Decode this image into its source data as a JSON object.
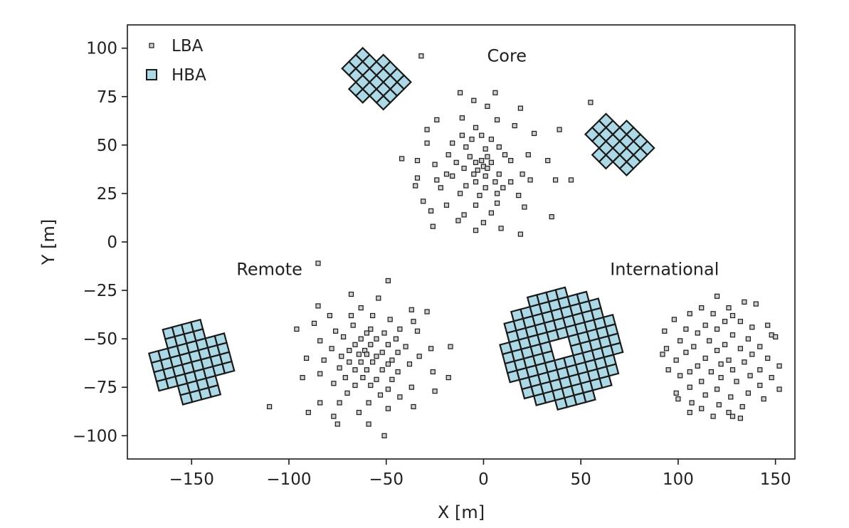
{
  "chart_data": {
    "type": "scatter",
    "xlabel": "X [m]",
    "ylabel": "Y [m]",
    "xlim": [
      -183,
      160
    ],
    "ylim": [
      -112,
      112
    ],
    "xticks": [
      -150,
      -100,
      -50,
      0,
      50,
      100,
      150
    ],
    "yticks": [
      -100,
      -75,
      -50,
      -25,
      0,
      25,
      50,
      75,
      100
    ],
    "xtick_labels": [
      "−150",
      "−100",
      "−50",
      "0",
      "50",
      "100",
      "150"
    ],
    "ytick_labels": [
      "−100",
      "−75",
      "−50",
      "−25",
      "0",
      "25",
      "50",
      "75",
      "100"
    ],
    "grid": false,
    "legend_position": "top-left",
    "legend": [
      {
        "name": "LBA",
        "marker": "small-square"
      },
      {
        "name": "HBA",
        "marker": "large-square"
      }
    ],
    "annotations": [
      {
        "text": "Core",
        "x": 12,
        "y": 93
      },
      {
        "text": "Remote",
        "x": -110,
        "y": -17
      },
      {
        "text": "International",
        "x": 93,
        "y": -17
      }
    ],
    "colors": {
      "hba_fill": "#add8e6",
      "edge": "#1a1a1a",
      "lba_fill": "#cfcfcf"
    },
    "hba_tile_size": 5,
    "hba_stations": [
      {
        "group": "Core",
        "tiles": 24,
        "center": [
          -55,
          86
        ],
        "layout": "diamond-cross",
        "rotation_deg": 45
      },
      {
        "group": "Core",
        "tiles": 24,
        "center": [
          70,
          52
        ],
        "layout": "diamond-cross",
        "rotation_deg": 45
      },
      {
        "group": "Remote",
        "tiles": 48,
        "center": [
          -150,
          -62
        ],
        "layout": "cross",
        "rotation_deg": 15
      },
      {
        "group": "International",
        "tiles": 96,
        "center": [
          40,
          -55
        ],
        "layout": "disc",
        "rotation_deg": 15
      }
    ],
    "lba_series": [
      {
        "group": "Core",
        "points": [
          [
            -32,
            96
          ],
          [
            -12,
            77
          ],
          [
            6,
            77
          ],
          [
            -5,
            73
          ],
          [
            2,
            70
          ],
          [
            19,
            69
          ],
          [
            -11,
            64
          ],
          [
            7,
            63
          ],
          [
            -24,
            63
          ],
          [
            -4,
            59
          ],
          [
            16,
            60
          ],
          [
            -29,
            58
          ],
          [
            39,
            58
          ],
          [
            -11,
            55
          ],
          [
            -1,
            55
          ],
          [
            26,
            56
          ],
          [
            -6,
            53
          ],
          [
            4,
            53
          ],
          [
            -16,
            51
          ],
          [
            -9,
            49
          ],
          [
            1,
            48
          ],
          [
            8,
            49
          ],
          [
            -29,
            51
          ],
          [
            -42,
            43
          ],
          [
            -18,
            45
          ],
          [
            -7,
            44
          ],
          [
            2,
            44
          ],
          [
            11,
            45
          ],
          [
            23,
            45
          ],
          [
            -34,
            42
          ],
          [
            -14,
            41
          ],
          [
            -4,
            41
          ],
          [
            -1,
            42
          ],
          [
            4,
            41
          ],
          [
            14,
            42
          ],
          [
            33,
            42
          ],
          [
            -25,
            40
          ],
          [
            -10,
            38
          ],
          [
            0,
            39
          ],
          [
            2,
            38
          ],
          [
            -3,
            37
          ],
          [
            -19,
            35
          ],
          [
            -5,
            35
          ],
          [
            1,
            34
          ],
          [
            8,
            35
          ],
          [
            20,
            35
          ],
          [
            -16,
            34
          ],
          [
            -34,
            33
          ],
          [
            -24,
            32
          ],
          [
            -4,
            31
          ],
          [
            6,
            31
          ],
          [
            14,
            31
          ],
          [
            24,
            32
          ],
          [
            37,
            32
          ],
          [
            45,
            32
          ],
          [
            -9,
            29
          ],
          [
            1,
            28
          ],
          [
            10,
            28
          ],
          [
            -35,
            29
          ],
          [
            -22,
            28
          ],
          [
            -12,
            25
          ],
          [
            -2,
            24
          ],
          [
            7,
            25
          ],
          [
            18,
            24
          ],
          [
            -31,
            21
          ],
          [
            -19,
            19
          ],
          [
            -4,
            19
          ],
          [
            7,
            20
          ],
          [
            21,
            18
          ],
          [
            -27,
            16
          ],
          [
            -10,
            14
          ],
          [
            4,
            15
          ],
          [
            35,
            13
          ],
          [
            -13,
            11
          ],
          [
            0,
            10
          ],
          [
            -26,
            8
          ],
          [
            -4,
            6
          ],
          [
            9,
            7
          ],
          [
            19,
            4
          ],
          [
            55,
            72
          ]
        ]
      },
      {
        "group": "Remote",
        "points": [
          [
            -85,
            -11
          ],
          [
            -49,
            -20
          ],
          [
            -68,
            -27
          ],
          [
            -54,
            -29
          ],
          [
            -85,
            -33
          ],
          [
            -63,
            -34
          ],
          [
            -37,
            -35
          ],
          [
            -29,
            -36
          ],
          [
            -79,
            -38
          ],
          [
            -68,
            -38
          ],
          [
            -57,
            -38
          ],
          [
            -48,
            -40
          ],
          [
            -87,
            -42
          ],
          [
            -36,
            -41
          ],
          [
            -67,
            -43
          ],
          [
            -58,
            -45
          ],
          [
            -43,
            -45
          ],
          [
            -96,
            -45
          ],
          [
            -76,
            -46
          ],
          [
            -60,
            -47
          ],
          [
            -51,
            -47
          ],
          [
            -34,
            -46
          ],
          [
            -72,
            -49
          ],
          [
            -63,
            -50
          ],
          [
            -55,
            -50
          ],
          [
            -45,
            -50
          ],
          [
            -84,
            -51
          ],
          [
            -66,
            -53
          ],
          [
            -58,
            -53
          ],
          [
            -49,
            -53
          ],
          [
            -40,
            -54
          ],
          [
            -27,
            -55
          ],
          [
            -17,
            -54
          ],
          [
            -78,
            -55
          ],
          [
            -69,
            -56
          ],
          [
            -61,
            -56
          ],
          [
            -52,
            -57
          ],
          [
            -44,
            -57
          ],
          [
            -73,
            -59
          ],
          [
            -64,
            -58
          ],
          [
            -60,
            -58
          ],
          [
            -55,
            -59
          ],
          [
            -47,
            -61
          ],
          [
            -33,
            -59
          ],
          [
            -91,
            -60
          ],
          [
            -82,
            -61
          ],
          [
            -69,
            -62
          ],
          [
            -63,
            -62
          ],
          [
            -57,
            -62
          ],
          [
            -49,
            -63
          ],
          [
            -38,
            -63
          ],
          [
            -74,
            -65
          ],
          [
            -66,
            -66
          ],
          [
            -60,
            -66
          ],
          [
            -52,
            -66
          ],
          [
            -44,
            -67
          ],
          [
            -26,
            -67
          ],
          [
            -84,
            -68
          ],
          [
            -71,
            -70
          ],
          [
            -62,
            -70
          ],
          [
            -55,
            -71
          ],
          [
            -47,
            -71
          ],
          [
            -93,
            -70
          ],
          [
            -77,
            -73
          ],
          [
            -66,
            -74
          ],
          [
            -58,
            -74
          ],
          [
            -49,
            -76
          ],
          [
            -37,
            -75
          ],
          [
            -25,
            -77
          ],
          [
            -70,
            -78
          ],
          [
            -53,
            -79
          ],
          [
            -43,
            -80
          ],
          [
            -18,
            -70
          ],
          [
            -84,
            -83
          ],
          [
            -74,
            -83
          ],
          [
            -59,
            -83
          ],
          [
            -49,
            -86
          ],
          [
            -36,
            -85
          ],
          [
            -90,
            -88
          ],
          [
            -77,
            -90
          ],
          [
            -64,
            -88
          ],
          [
            -75,
            -94
          ],
          [
            -59,
            -94
          ],
          [
            -51,
            -100
          ],
          [
            -110,
            -85
          ]
        ]
      },
      {
        "group": "International",
        "points": [
          [
            120,
            -28
          ],
          [
            126,
            -34
          ],
          [
            134,
            -31
          ],
          [
            140,
            -32
          ],
          [
            112,
            -34
          ],
          [
            106,
            -37
          ],
          [
            118,
            -37
          ],
          [
            128,
            -38
          ],
          [
            98,
            -40
          ],
          [
            114,
            -43
          ],
          [
            124,
            -41
          ],
          [
            132,
            -41
          ],
          [
            138,
            -44
          ],
          [
            146,
            -43
          ],
          [
            104,
            -45
          ],
          [
            120,
            -45
          ],
          [
            110,
            -47
          ],
          [
            93,
            -46
          ],
          [
            128,
            -48
          ],
          [
            136,
            -50
          ],
          [
            148,
            -48
          ],
          [
            101,
            -51
          ],
          [
            116,
            -51
          ],
          [
            124,
            -53
          ],
          [
            142,
            -54
          ],
          [
            150,
            -49
          ],
          [
            108,
            -54
          ],
          [
            132,
            -55
          ],
          [
            94,
            -55
          ],
          [
            120,
            -56
          ],
          [
            104,
            -57
          ],
          [
            138,
            -58
          ],
          [
            146,
            -60
          ],
          [
            114,
            -60
          ],
          [
            126,
            -61
          ],
          [
            92,
            -58
          ],
          [
            99,
            -61
          ],
          [
            134,
            -62
          ],
          [
            122,
            -63
          ],
          [
            110,
            -64
          ],
          [
            152,
            -64
          ],
          [
            142,
            -66
          ],
          [
            106,
            -67
          ],
          [
            128,
            -66
          ],
          [
            117,
            -67
          ],
          [
            95,
            -66
          ],
          [
            137,
            -69
          ],
          [
            101,
            -69
          ],
          [
            122,
            -70
          ],
          [
            148,
            -70
          ],
          [
            112,
            -72
          ],
          [
            130,
            -72
          ],
          [
            142,
            -74
          ],
          [
            106,
            -75
          ],
          [
            120,
            -76
          ],
          [
            152,
            -76
          ],
          [
            99,
            -78
          ],
          [
            136,
            -78
          ],
          [
            114,
            -79
          ],
          [
            127,
            -80
          ],
          [
            144,
            -81
          ],
          [
            107,
            -83
          ],
          [
            100,
            -81
          ],
          [
            121,
            -84
          ],
          [
            133,
            -85
          ],
          [
            112,
            -86
          ],
          [
            106,
            -88
          ],
          [
            126,
            -88
          ],
          [
            118,
            -90
          ],
          [
            132,
            -91
          ],
          [
            128,
            -90
          ]
        ]
      }
    ]
  }
}
